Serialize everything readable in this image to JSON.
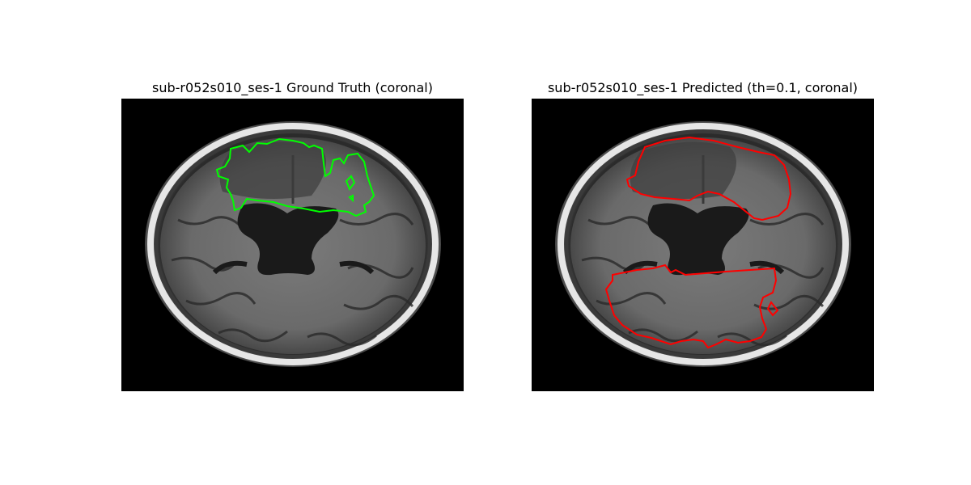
{
  "panels": [
    {
      "title": "sub-r052s010_ses-1 Ground Truth (coronal)",
      "contour_color": "#00ff00",
      "contour_label": "ground truth lesion outline"
    },
    {
      "title": "sub-r052s010_ses-1 Predicted (th=0.1, coronal)",
      "contour_color": "#ff0000",
      "contour_label": "predicted lesion outline"
    }
  ],
  "image": {
    "background": "#000000",
    "skull_color": "#e6e6e6",
    "tissue_color": "#8a8a8a",
    "csf_color": "#1a1a1a"
  }
}
